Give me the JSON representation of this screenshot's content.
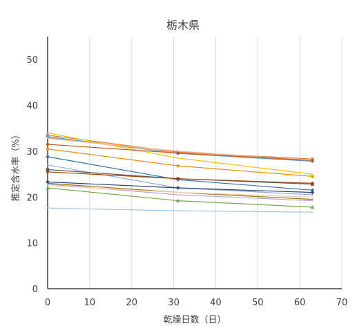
{
  "chart_data": {
    "type": "line",
    "title": "栃木県",
    "xlabel": "乾燥日数（日）",
    "ylabel": "推定含水率（%）",
    "xlim": [
      0,
      70
    ],
    "ylim": [
      0,
      55
    ],
    "xticks": [
      0,
      10,
      20,
      30,
      40,
      50,
      60,
      70
    ],
    "yticks": [
      0,
      10,
      20,
      30,
      40,
      50
    ],
    "grid": "vertical",
    "legend": "none",
    "x": [
      0,
      31,
      63
    ],
    "series": [
      {
        "color": "#ed7d31",
        "marker": "circle",
        "values": [
          33.5,
          29.8,
          28.3
        ]
      },
      {
        "color": "#5b9bd5",
        "marker": "circle",
        "values": [
          33.2,
          29.5,
          27.8
        ]
      },
      {
        "color": "#a5a5a5",
        "marker": "none",
        "values": [
          33.0,
          29.6,
          28.0
        ]
      },
      {
        "color": "#ffc000",
        "marker": "none",
        "values": [
          34.0,
          28.5,
          25.0
        ]
      },
      {
        "color": "#f4b183",
        "marker": "none",
        "values": [
          32.8,
          30.0,
          28.0
        ]
      },
      {
        "color": "#c55a11",
        "marker": "circle",
        "values": [
          31.5,
          29.6,
          28.0
        ]
      },
      {
        "color": "#e69500",
        "marker": "circle",
        "values": [
          30.5,
          26.8,
          24.5
        ]
      },
      {
        "color": "#2e75b6",
        "marker": "diamond",
        "values": [
          28.8,
          23.8,
          21.5
        ]
      },
      {
        "color": "#8faadc",
        "marker": "none",
        "values": [
          27.0,
          22.0,
          20.5
        ]
      },
      {
        "color": "#5a5a5a",
        "marker": "square",
        "values": [
          26.0,
          24.0,
          22.8
        ]
      },
      {
        "color": "#9e480e",
        "marker": "circle",
        "values": [
          25.5,
          24.0,
          23.0
        ]
      },
      {
        "color": "#264478",
        "marker": "diamond",
        "values": [
          23.3,
          22.0,
          21.0
        ]
      },
      {
        "color": "#997300",
        "marker": "none",
        "values": [
          23.0,
          21.0,
          19.5
        ]
      },
      {
        "color": "#b4a7d6",
        "marker": "none",
        "values": [
          22.8,
          20.5,
          19.2
        ]
      },
      {
        "color": "#f8cbad",
        "marker": "none",
        "values": [
          22.5,
          21.0,
          20.0
        ]
      },
      {
        "color": "#70ad47",
        "marker": "triangle",
        "values": [
          22.0,
          19.2,
          17.8
        ]
      },
      {
        "color": "#9dc3e6",
        "marker": "none",
        "values": [
          17.6,
          17.0,
          16.7
        ]
      }
    ]
  }
}
